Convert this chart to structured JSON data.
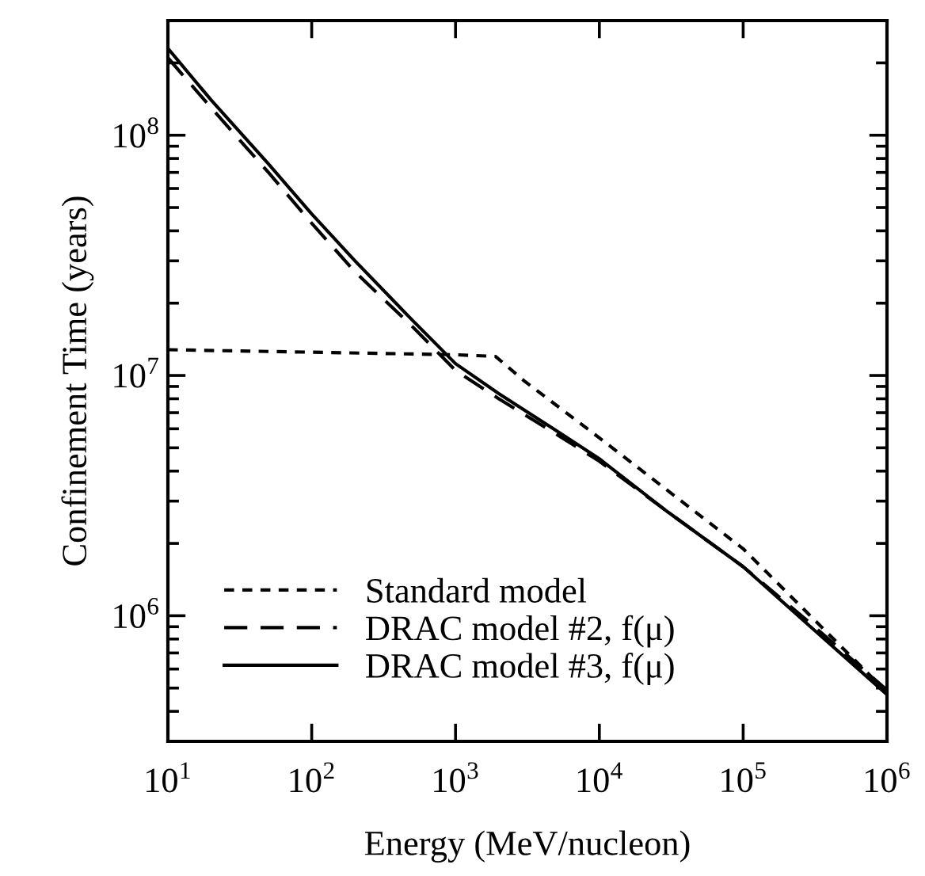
{
  "chart_data": {
    "type": "line",
    "xlabel": "Energy (MeV/nucleon)",
    "ylabel": "Confinement Time (years)",
    "log": "xy",
    "grid": false,
    "legend": "bottom left",
    "x": [
      10,
      20,
      50,
      100,
      200,
      500,
      1000,
      2000,
      5000,
      10000,
      30000,
      100000,
      300000,
      1000000
    ],
    "xlim": [
      10,
      1000000
    ],
    "ylim": [
      300000,
      300000000
    ],
    "xticks": [
      {
        "value": 10,
        "label": "10$^{1}$"
      },
      {
        "value": 100,
        "label": "10$^{2}$"
      },
      {
        "value": 1000,
        "label": "10$^{3}$"
      },
      {
        "value": 10000,
        "label": "10$^{4}$"
      },
      {
        "value": 100000,
        "label": "10$^{5}$"
      },
      {
        "value": 1000000,
        "label": "10$^{6}$"
      }
    ],
    "yticks": [
      {
        "value": 1000000,
        "label": "10$^{6}$"
      },
      {
        "value": 10000000,
        "label": "10$^{7}$"
      },
      {
        "value": 100000000,
        "label": "10$^{8}$"
      }
    ],
    "series": [
      {
        "name": "Standard model",
        "color": "#000000",
        "line_style": "dotted",
        "x": [
          10,
          100,
          1000,
          1900,
          3000,
          10000,
          100000,
          1000000
        ],
        "values": [
          12800000,
          12500000,
          12200000,
          12000000,
          9500000,
          5500000,
          1900000,
          480000
        ]
      },
      {
        "name": "DRAC model #2, f(μ)",
        "color": "#000000",
        "line_style": "dashed",
        "values": [
          210000000,
          130000000,
          70000000,
          43000000,
          27000000,
          16000000,
          10500000,
          8000000,
          5700000,
          4400000,
          2700000,
          1600000,
          920000,
          490000
        ]
      },
      {
        "name": "DRAC model #3, f(μ)",
        "color": "#000000",
        "line_style": "solid",
        "values": [
          230000000,
          140000000,
          76000000,
          47000000,
          30000000,
          17000000,
          11200000,
          8400000,
          5900000,
          4500000,
          2700000,
          1600000,
          890000,
          470000
        ]
      }
    ]
  }
}
